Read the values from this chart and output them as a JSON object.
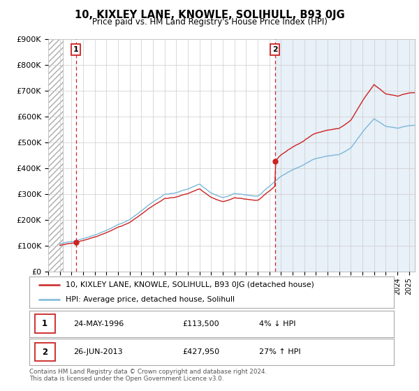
{
  "title": "10, KIXLEY LANE, KNOWLE, SOLIHULL, B93 0JG",
  "subtitle": "Price paid vs. HM Land Registry's House Price Index (HPI)",
  "ylim": [
    0,
    900000
  ],
  "yticks": [
    0,
    100000,
    200000,
    300000,
    400000,
    500000,
    600000,
    700000,
    800000,
    900000
  ],
  "ytick_labels": [
    "£0",
    "£100K",
    "£200K",
    "£300K",
    "£400K",
    "£500K",
    "£600K",
    "£700K",
    "£800K",
    "£900K"
  ],
  "xlim_start": 1994.0,
  "xlim_end": 2025.5,
  "hpi_color": "#7ab8d9",
  "price_color": "#cc2222",
  "sale1_year": 1996.39,
  "sale1_price": 113500,
  "sale2_year": 2013.49,
  "sale2_price": 427950,
  "legend_label1": "10, KIXLEY LANE, KNOWLE, SOLIHULL, B93 0JG (detached house)",
  "legend_label2": "HPI: Average price, detached house, Solihull",
  "footnote": "Contains HM Land Registry data © Crown copyright and database right 2024.\nThis data is licensed under the Open Government Licence v3.0.",
  "table_row1": [
    "1",
    "24-MAY-1996",
    "£113,500",
    "4% ↓ HPI"
  ],
  "table_row2": [
    "2",
    "26-JUN-2013",
    "£427,950",
    "27% ↑ HPI"
  ],
  "hatch_end_year": 1995.25,
  "shade_start_year": 2013.49,
  "bg_hatch": "#e8e8e8",
  "bg_shade": "#e8f0f8"
}
